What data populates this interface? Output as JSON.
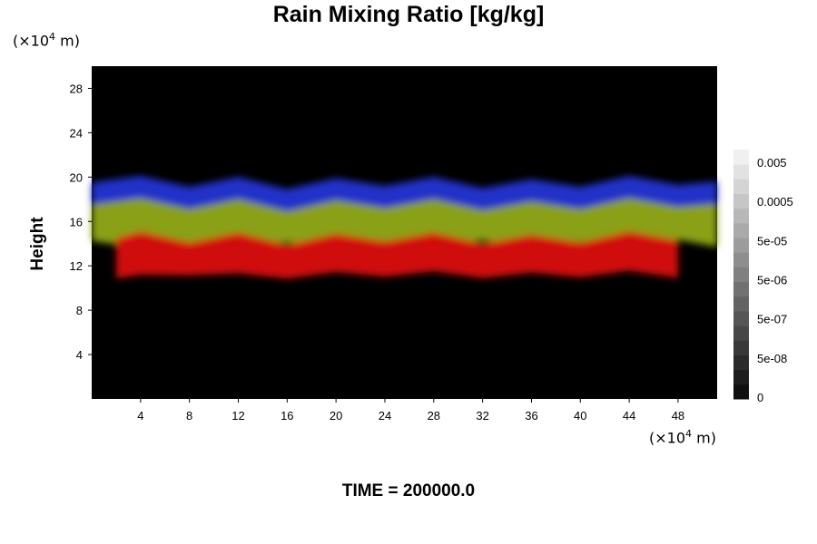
{
  "chart_data": {
    "type": "heatmap",
    "title": "Rain Mixing Ratio [kg/kg]",
    "xlabel": "",
    "ylabel": "Height",
    "x_unit_prefix": "(×10",
    "x_unit_exp": "4",
    "x_unit_suffix": " m)",
    "y_unit_prefix": "(×10",
    "y_unit_exp": "4",
    "y_unit_suffix": " m)",
    "xlim": [
      0,
      51.2
    ],
    "ylim": [
      0,
      30
    ],
    "x_ticks": [
      4,
      8,
      12,
      16,
      20,
      24,
      28,
      32,
      36,
      40,
      44,
      48
    ],
    "y_ticks": [
      4,
      8,
      12,
      16,
      20,
      24,
      28
    ],
    "background_color": "#000000",
    "colorbar": {
      "tick_labels": [
        "0.005",
        "0.0005",
        "5e-05",
        "5e-06",
        "5e-07",
        "5e-08",
        "0"
      ],
      "levels": 17
    },
    "layers": [
      {
        "color": "#2030c8",
        "y_bottom": 16.5,
        "y_top": 19.5,
        "x": [
          0,
          4,
          8,
          12,
          16,
          20,
          24,
          28,
          32,
          36,
          40,
          44,
          48,
          51.2
        ]
      },
      {
        "color": "#8aa012",
        "y_bottom": 14.0,
        "y_top": 17.5,
        "x": [
          0,
          4,
          8,
          12,
          16,
          20,
          24,
          28,
          32,
          36,
          40,
          44,
          48,
          51.2
        ]
      },
      {
        "color": "#d01010",
        "y_bottom": 11.2,
        "y_top": 14.5,
        "x": [
          2,
          4,
          8,
          12,
          16,
          20,
          24,
          28,
          32,
          36,
          40,
          44,
          48
        ]
      }
    ]
  },
  "footer": {
    "time_label": "TIME = 200000.0"
  }
}
